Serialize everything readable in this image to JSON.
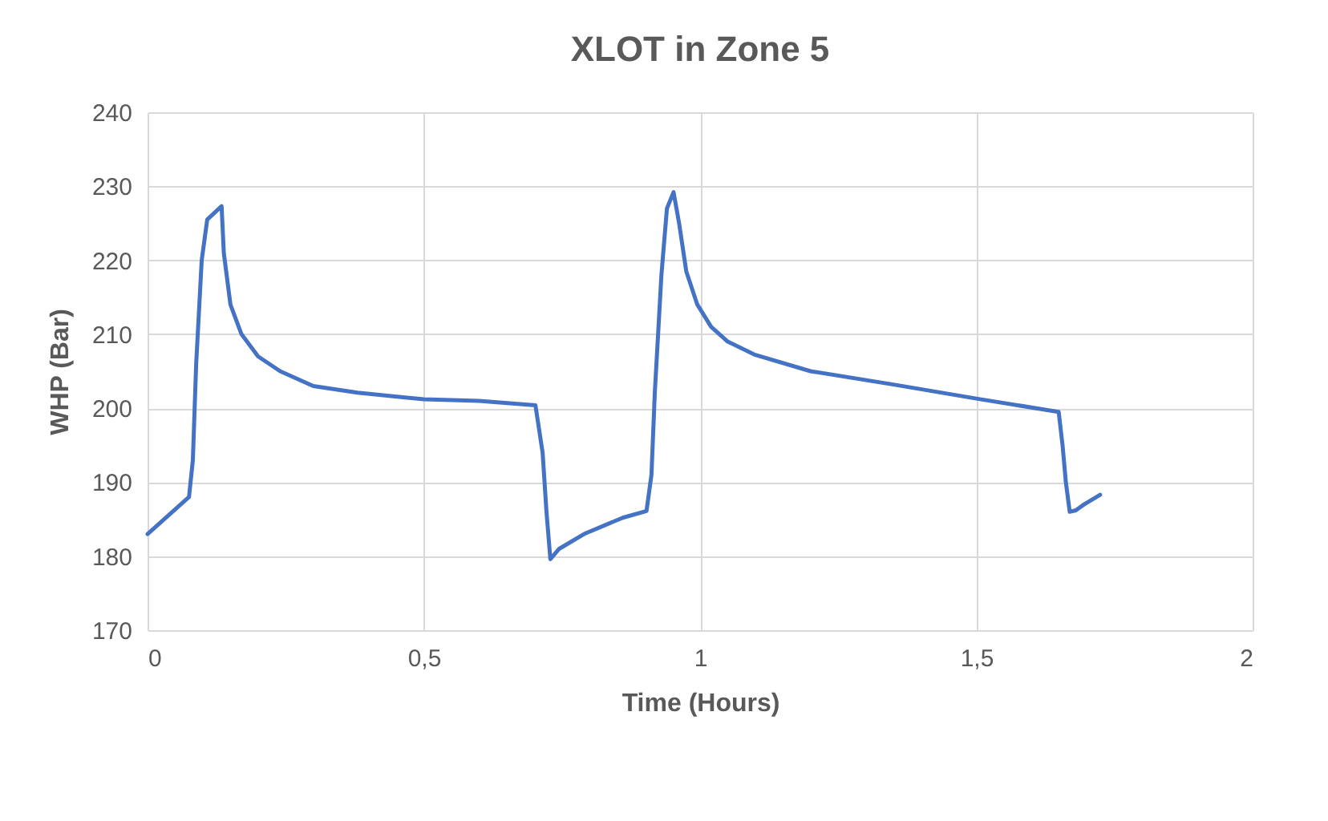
{
  "chart_data": {
    "type": "line",
    "title": "XLOT in Zone 5",
    "xlabel": "Time (Hours)",
    "ylabel": "WHP (Bar)",
    "xlim": [
      0,
      2
    ],
    "xticks": [
      0,
      {
        "value": 0.5,
        "label": "0,5"
      },
      1,
      {
        "value": 1.5,
        "label": "1,5"
      },
      2
    ],
    "ylim": [
      170,
      240
    ],
    "yticks": [
      170,
      180,
      190,
      200,
      210,
      220,
      230,
      240
    ],
    "grid": true,
    "legend": false,
    "series": [
      {
        "color": "#4472c4",
        "x": [
          0,
          0.075,
          0.082,
          0.088,
          0.098,
          0.108,
          0.134,
          0.138,
          0.15,
          0.17,
          0.2,
          0.24,
          0.3,
          0.38,
          0.5,
          0.6,
          0.702,
          0.715,
          0.722,
          0.729,
          0.745,
          0.79,
          0.86,
          0.903,
          0.912,
          0.918,
          0.93,
          0.94,
          0.952,
          0.962,
          0.975,
          0.995,
          1.02,
          1.05,
          1.1,
          1.2,
          1.35,
          1.5,
          1.649,
          1.656,
          1.662,
          1.669,
          1.68,
          1.695,
          1.724
        ],
        "values": [
          183,
          188,
          193,
          206,
          220,
          225.5,
          227.3,
          221,
          214,
          210,
          207,
          205,
          203,
          202.1,
          201.2,
          201,
          200.4,
          194,
          186,
          179.6,
          181,
          183,
          185.2,
          186.1,
          191,
          202,
          218,
          227,
          229.2,
          225,
          218.5,
          214,
          211,
          209,
          207.2,
          205,
          203.2,
          201.3,
          199.5,
          195,
          190,
          186,
          186.2,
          187,
          188.3
        ]
      }
    ]
  }
}
